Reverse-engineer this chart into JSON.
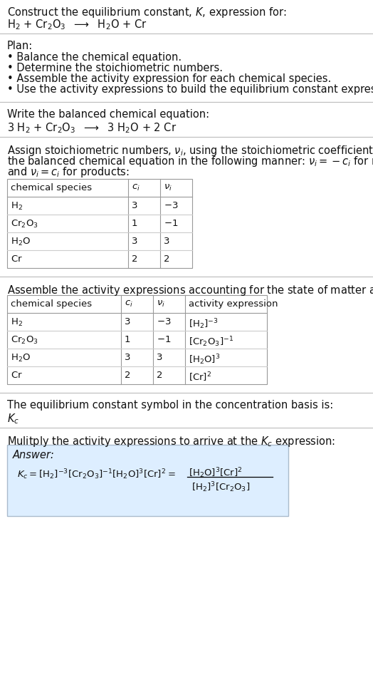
{
  "bg_color": "#ffffff",
  "text_color": "#111111",
  "font_size": 10.5,
  "small_font": 9.5,
  "lm": 10,
  "sections": {
    "title1": "Construct the equilibrium constant, $K$, expression for:",
    "reaction_unbalanced": "H_2 + Cr_2O_3  ⟶  H_2O + Cr",
    "plan_header": "Plan:",
    "plan_items": [
      "• Balance the chemical equation.",
      "• Determine the stoichiometric numbers.",
      "• Assemble the activity expression for each chemical species.",
      "• Use the activity expressions to build the equilibrium constant expression."
    ],
    "balanced_header": "Write the balanced chemical equation:",
    "reaction_balanced": "3 H_2 + Cr_2O_3  ⟶  3 H_2O + 2 Cr",
    "stoich_para": [
      "Assign stoichiometric numbers, $\\nu_i$, using the stoichiometric coefficients, $c_i$, from",
      "the balanced chemical equation in the following manner: $\\nu_i = -c_i$ for reactants",
      "and $\\nu_i = c_i$ for products:"
    ],
    "table1_cols": [
      "chemical species",
      "$c_i$",
      "$\\nu_i$"
    ],
    "table1_rows": [
      [
        "$\\mathrm{H_2}$",
        "3",
        "$-3$"
      ],
      [
        "$\\mathrm{Cr_2O_3}$",
        "1",
        "$-1$"
      ],
      [
        "$\\mathrm{H_2O}$",
        "3",
        "3"
      ],
      [
        "$\\mathrm{Cr}$",
        "2",
        "2"
      ]
    ],
    "activity_header": "Assemble the activity expressions accounting for the state of matter and $\\nu_i$:",
    "table2_cols": [
      "chemical species",
      "$c_i$",
      "$\\nu_i$",
      "activity expression"
    ],
    "table2_rows": [
      [
        "$\\mathrm{H_2}$",
        "3",
        "$-3$",
        "$[\\mathrm{H_2}]^{-3}$"
      ],
      [
        "$\\mathrm{Cr_2O_3}$",
        "1",
        "$-1$",
        "$[\\mathrm{Cr_2O_3}]^{-1}$"
      ],
      [
        "$\\mathrm{H_2O}$",
        "3",
        "3",
        "$[\\mathrm{H_2O}]^{3}$"
      ],
      [
        "$\\mathrm{Cr}$",
        "2",
        "2",
        "$[\\mathrm{Cr}]^{2}$"
      ]
    ],
    "kc_line1": "The equilibrium constant symbol in the concentration basis is:",
    "kc_symbol": "$K_c$",
    "multiply_line": "Mulitply the activity expressions to arrive at the $K_c$ expression:",
    "answer_label": "Answer:",
    "answer_box_fill": "#ddeeff",
    "answer_box_edge": "#aabbcc"
  }
}
